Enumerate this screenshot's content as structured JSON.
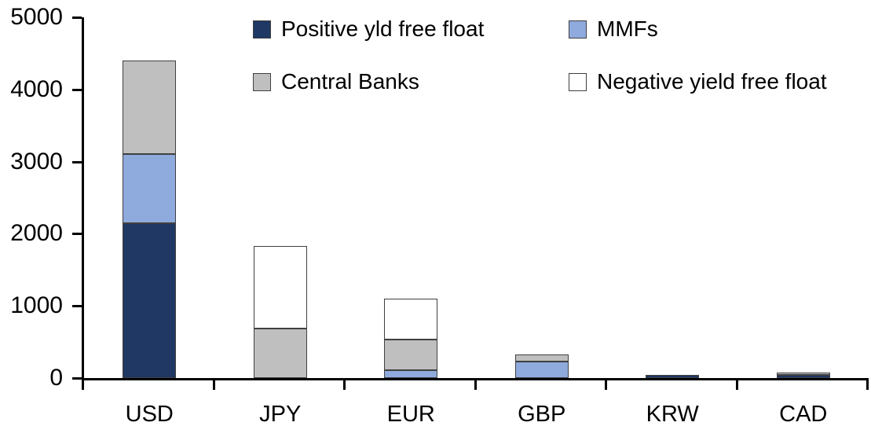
{
  "chart_data": {
    "type": "bar",
    "stacked": true,
    "title": "",
    "xlabel": "",
    "ylabel": "",
    "categories": [
      "USD",
      "JPY",
      "EUR",
      "GBP",
      "KRW",
      "CAD"
    ],
    "series": [
      {
        "name": "Positive yld free float",
        "color": "#1f3864",
        "values": [
          2150,
          0,
          0,
          0,
          45,
          40
        ]
      },
      {
        "name": "MMFs",
        "color": "#8faadc",
        "values": [
          950,
          0,
          110,
          230,
          0,
          0
        ]
      },
      {
        "name": "Central Banks",
        "color": "#bfbfbf",
        "values": [
          1300,
          690,
          420,
          100,
          0,
          40
        ]
      },
      {
        "name": "Negative yield free float",
        "color": "#ffffff",
        "values": [
          0,
          1140,
          570,
          0,
          0,
          0
        ]
      }
    ],
    "totals": {
      "USD": 4400,
      "JPY": 1830,
      "EUR": 1100,
      "GBP": 330,
      "KRW": 45,
      "CAD": 80
    },
    "ylim": [
      0,
      5000
    ],
    "yticks": [
      0,
      1000,
      2000,
      3000,
      4000,
      5000
    ],
    "grid": false,
    "legend_position": "top",
    "bar_border_color": "#404040",
    "axis_color": "#000000"
  },
  "legend": {
    "items": [
      {
        "label": "Positive yld free float",
        "color": "#1f3864"
      },
      {
        "label": "MMFs",
        "color": "#8faadc"
      },
      {
        "label": "Central Banks",
        "color": "#bfbfbf"
      },
      {
        "label": "Negative yield free float",
        "color": "#ffffff"
      }
    ]
  }
}
